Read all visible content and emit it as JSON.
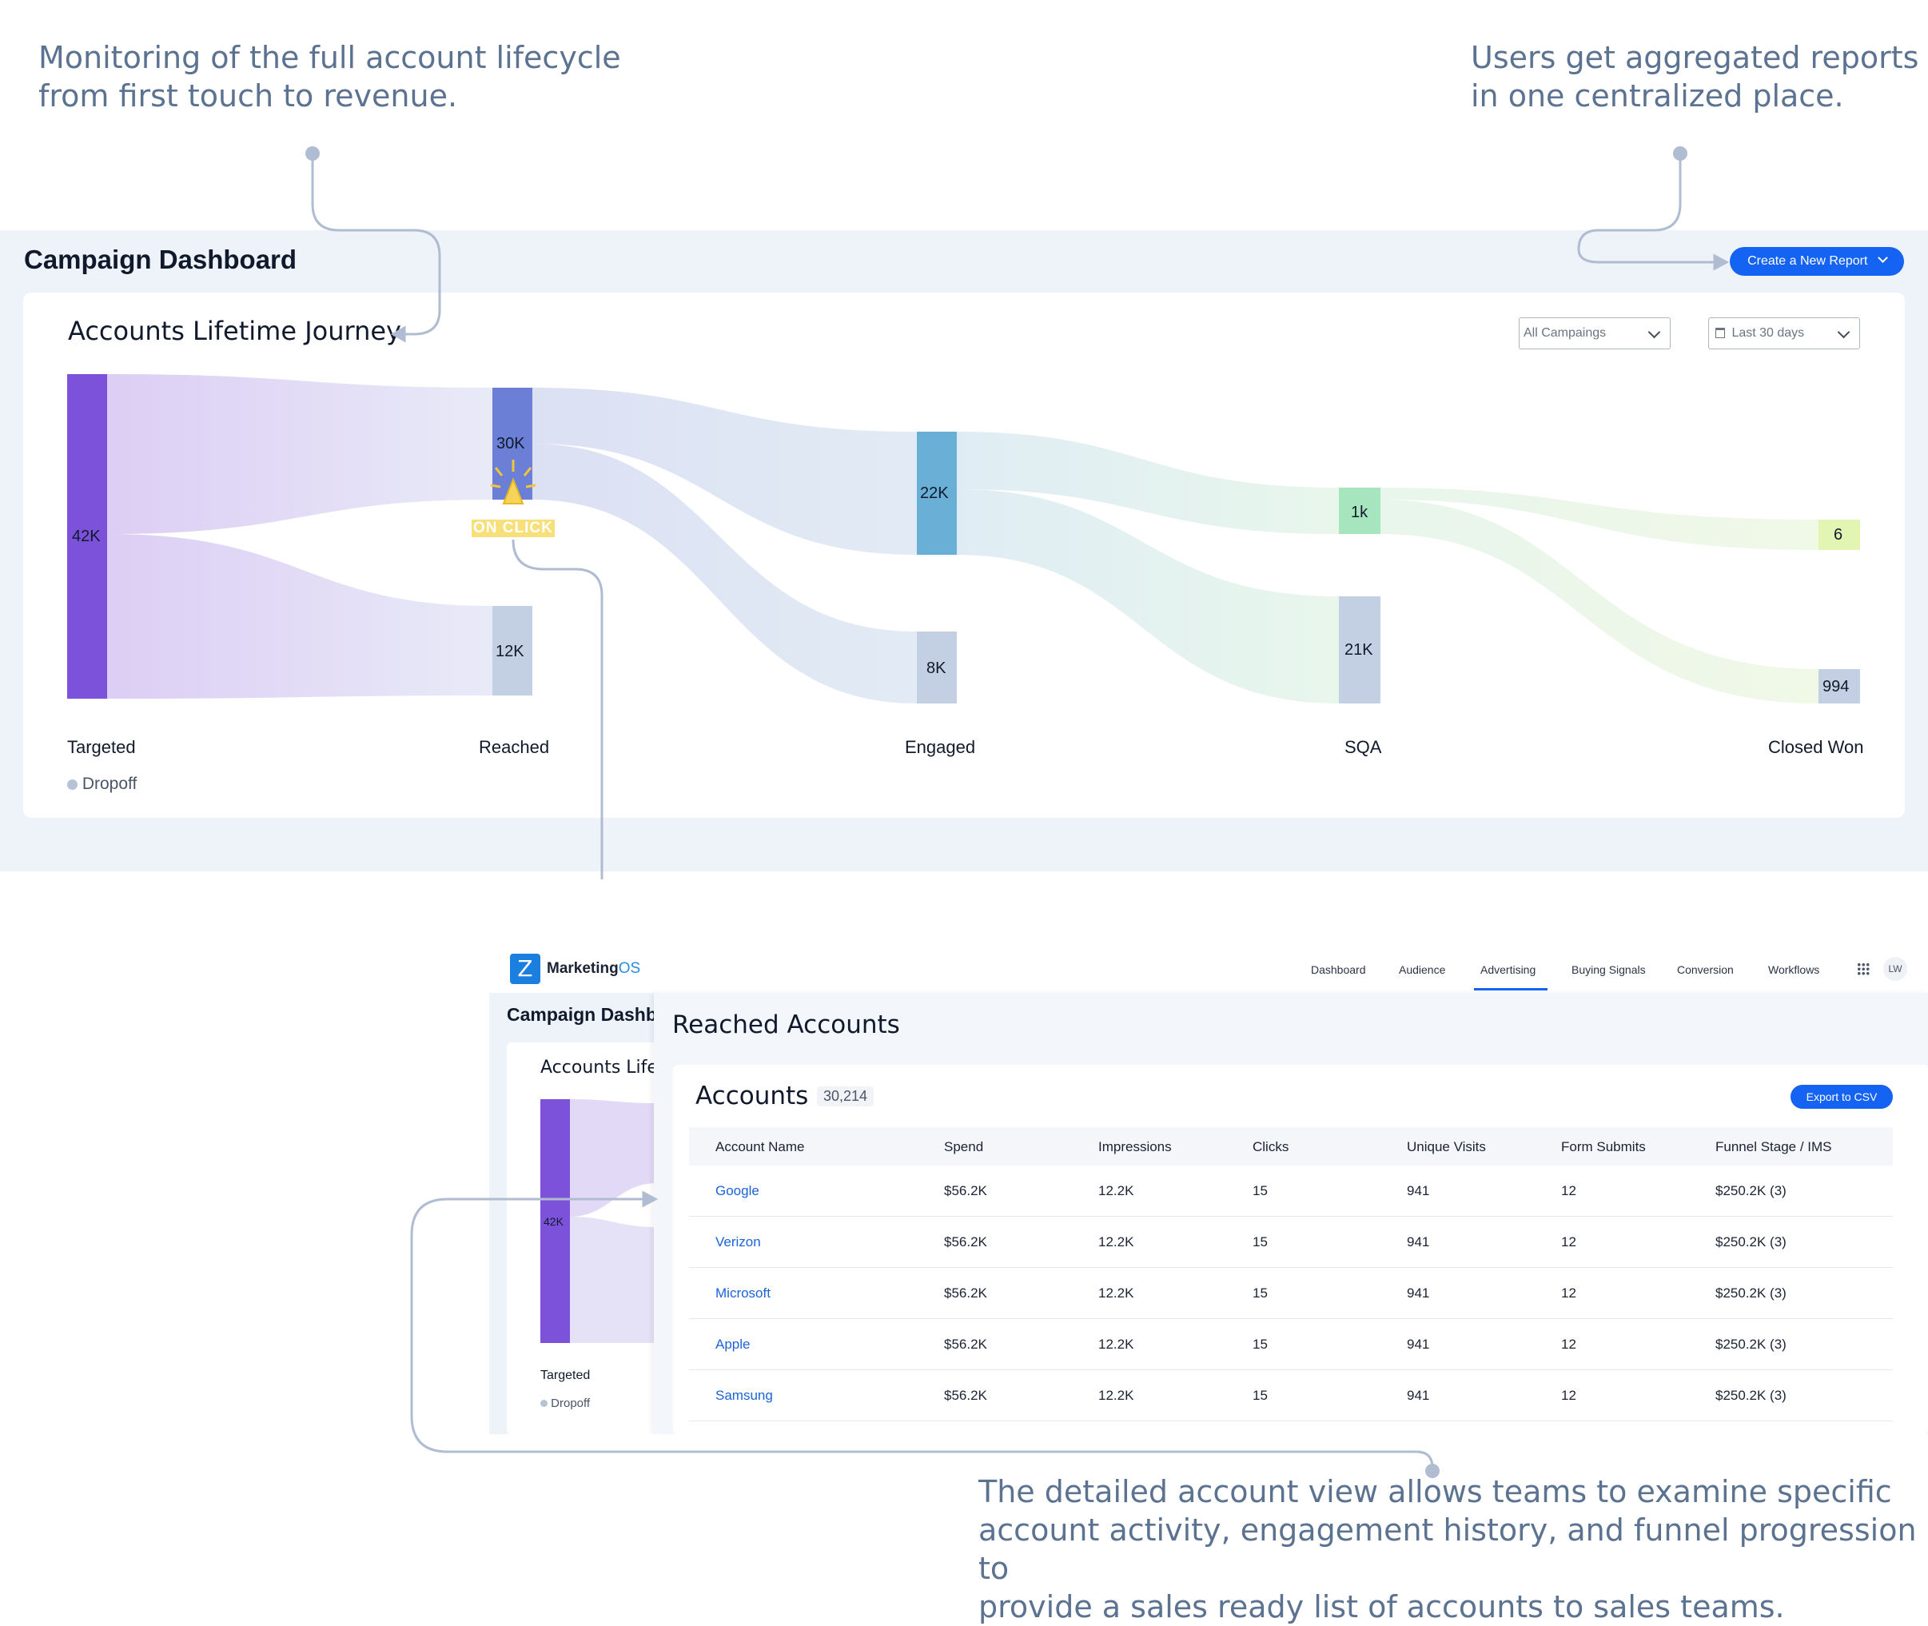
{
  "annotations": {
    "top_left": [
      "Monitoring of the full account lifecycle",
      "from first touch to revenue."
    ],
    "top_right": [
      "Users get aggregated reports",
      "in one centralized place."
    ],
    "bottom": [
      "The detailed account view allows teams to examine specific",
      "account activity, engagement history, and funnel progression to",
      "provide a sales ready list of accounts to sales teams."
    ]
  },
  "dashboard": {
    "title": "Campaign Dashboard",
    "create_button": "Create a New Report",
    "card_title": "Accounts Lifetime Journey",
    "filter_campaigns": "All Campaings",
    "filter_date": "Last 30 days",
    "legend_dropoff": "Dropoff",
    "on_click": "ON CLICK",
    "stages": [
      "Targeted",
      "Reached",
      "Engaged",
      "SQA",
      "Closed Won"
    ],
    "nodes": {
      "targeted": "42K",
      "reached": "30K",
      "reached_drop": "12K",
      "engaged": "22K",
      "engaged_drop": "8K",
      "sqa": "1k",
      "sqa_drop": "21K",
      "won": "6",
      "won_drop": "994"
    }
  },
  "app": {
    "logo_text_a": "Marketing",
    "logo_text_b": "OS",
    "nav": [
      "Dashboard",
      "Audience",
      "Advertising",
      "Buying Signals",
      "Conversion",
      "Workflows"
    ],
    "active_nav": "Advertising",
    "avatar": "LW",
    "bg_title": "Campaign Dashb",
    "bg_card_title": "Accounts Lifet",
    "bg_node": "42K",
    "bg_stage": "Targeted",
    "bg_dropoff": "Dropoff",
    "panel_title": "Reached Accounts",
    "accounts_title": "Accounts",
    "accounts_count": "30,214",
    "export_button": "Export to CSV",
    "columns": [
      "Account Name",
      "Spend",
      "Impressions",
      "Clicks",
      "Unique Visits",
      "Form Submits",
      "Funnel Stage / IMS"
    ],
    "rows": [
      [
        "Google",
        "$56.2K",
        "12.2K",
        "15",
        "941",
        "12",
        "$250.2K (3)"
      ],
      [
        "Verizon",
        "$56.2K",
        "12.2K",
        "15",
        "941",
        "12",
        "$250.2K (3)"
      ],
      [
        "Microsoft",
        "$56.2K",
        "12.2K",
        "15",
        "941",
        "12",
        "$250.2K (3)"
      ],
      [
        "Apple",
        "$56.2K",
        "12.2K",
        "15",
        "941",
        "12",
        "$250.2K (3)"
      ],
      [
        "Samsung",
        "$56.2K",
        "12.2K",
        "15",
        "941",
        "12",
        "$250.2K (3)"
      ]
    ]
  },
  "colors": {
    "targeted": "#7b52d9",
    "reached": "#6b7fd6",
    "engaged": "#6aafd6",
    "sqa": "#a6e5bd",
    "won": "#e3f5b3",
    "dropoff": "#c3cfe3",
    "accent": "#1463f3",
    "annotation": "#5b7391"
  }
}
